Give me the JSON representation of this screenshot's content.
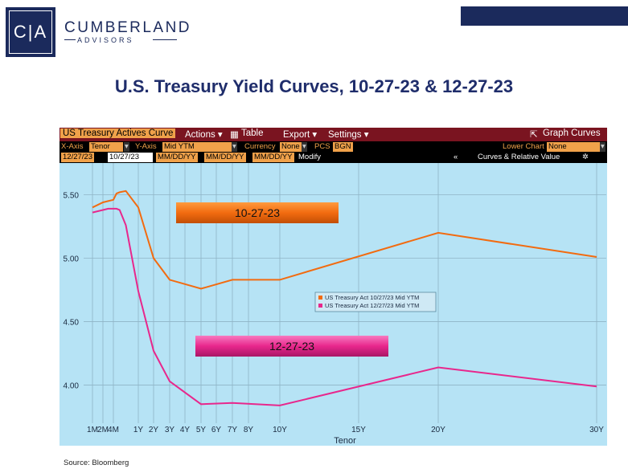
{
  "logo": {
    "letters": "C|A",
    "name": "CUMBERLAND",
    "sub": "ADVISORS"
  },
  "title": "U.S. Treasury Yield Curves, 10-27-23 & 12-27-23",
  "source": "Source: Bloomberg",
  "terminal": {
    "menu": {
      "curve": "US Treasury Actives Curve",
      "actions": "Actions ▾",
      "table": "Table",
      "export": "Export ▾",
      "settings": "Settings ▾",
      "graph_curves": "Graph Curves"
    },
    "row2": {
      "xaxis_label": "X-Axis",
      "xaxis_value": "Tenor",
      "yaxis_label": "Y-Axis",
      "yaxis_value": "Mid YTM",
      "currency_label": "Currency",
      "currency_value": "None",
      "pcs_label": "PCS",
      "pcs_value": "BGN",
      "lower_label": "Lower Chart",
      "lower_value": "None"
    },
    "row3": {
      "d1": "12/27/23",
      "d2": "10/27/23",
      "d3": "MM/DD/YY",
      "d4": "MM/DD/YY",
      "d5": "MM/DD/YY",
      "modify": "Modify",
      "arrows": "«",
      "relative": "Curves & Relative Value",
      "gear": "✲"
    }
  },
  "chart_data": {
    "type": "line",
    "xlabel": "Tenor",
    "x_ticks": [
      "1M",
      "2M",
      "4M",
      "1Y",
      "2Y",
      "3Y",
      "4Y",
      "5Y",
      "6Y",
      "7Y",
      "8Y",
      "10Y",
      "15Y",
      "20Y",
      "30Y"
    ],
    "x_tick_years": [
      0.0833,
      0.1667,
      0.3333,
      1,
      2,
      3,
      4,
      5,
      6,
      7,
      8,
      10,
      15,
      20,
      30
    ],
    "y_ticks": [
      4.0,
      4.5,
      5.0,
      5.5
    ],
    "ylim": [
      3.7,
      5.75
    ],
    "grid": true,
    "legend_position": "center-right",
    "annotations": [
      {
        "text": "10-27-23",
        "color": "#f26b10"
      },
      {
        "text": "12-27-23",
        "color": "#e8278c"
      }
    ],
    "series": [
      {
        "name": "US Treasury Act 10/27/23 Mid YTM",
        "color": "#f26b10",
        "points": [
          [
            0.0833,
            5.4
          ],
          [
            0.1667,
            5.44
          ],
          [
            0.25,
            5.45
          ],
          [
            0.3333,
            5.46
          ],
          [
            0.4167,
            5.51
          ],
          [
            0.5,
            5.52
          ],
          [
            0.6667,
            5.53
          ],
          [
            1,
            5.4
          ],
          [
            2,
            5.0
          ],
          [
            3,
            4.83
          ],
          [
            5,
            4.76
          ],
          [
            7,
            4.83
          ],
          [
            10,
            4.83
          ],
          [
            20,
            5.2
          ],
          [
            30,
            5.01
          ]
        ]
      },
      {
        "name": "US Treasury Act 12/27/23 Mid YTM",
        "color": "#e8278c",
        "points": [
          [
            0.0833,
            5.36
          ],
          [
            0.1667,
            5.38
          ],
          [
            0.25,
            5.39
          ],
          [
            0.3333,
            5.39
          ],
          [
            0.4167,
            5.39
          ],
          [
            0.5,
            5.38
          ],
          [
            0.6667,
            5.26
          ],
          [
            1,
            4.74
          ],
          [
            2,
            4.27
          ],
          [
            3,
            4.03
          ],
          [
            5,
            3.85
          ],
          [
            7,
            3.86
          ],
          [
            10,
            3.84
          ],
          [
            20,
            4.14
          ],
          [
            30,
            3.99
          ]
        ]
      }
    ]
  }
}
